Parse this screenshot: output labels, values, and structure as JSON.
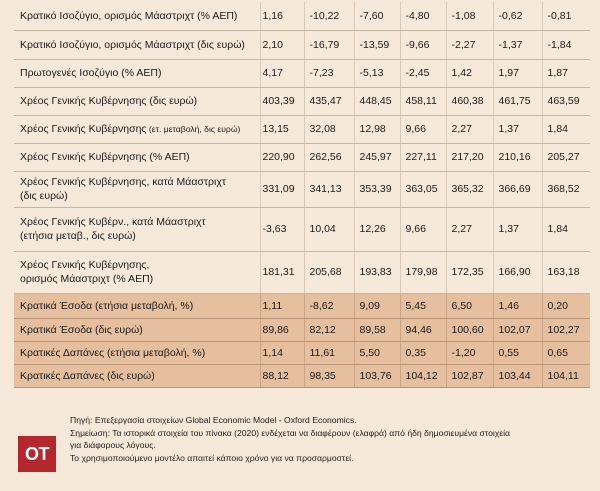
{
  "table": {
    "rows": [
      {
        "style": "light",
        "label": "Κρατικό Ισοζύγιο, ορισμός Μάαστριχτ (% ΑΕΠ)",
        "values": [
          "1,16",
          "-10,22",
          "-7,60",
          "-4,80",
          "-1,08",
          "-0,62",
          "-0,81"
        ]
      },
      {
        "style": "light",
        "label": "Κρατικό Ισοζύγιο, ορισμός Μάαστριχτ (δις ευρώ)",
        "values": [
          "2,10",
          "-16,79",
          "-13,59",
          "-9,66",
          "-2,27",
          "-1,37",
          "-1,84"
        ]
      },
      {
        "style": "light",
        "label": "Πρωτογενές Ισοζύγιο (% ΑΕΠ)",
        "values": [
          "4,17",
          "-7,23",
          "-5,13",
          "-2,45",
          "1,42",
          "1,97",
          "1,87"
        ]
      },
      {
        "style": "light",
        "label": "Χρέος Γενικής Κυβέρνησης (δις ευρώ)",
        "values": [
          "403,39",
          "435,47",
          "448,45",
          "458,11",
          "460,38",
          "461,75",
          "463,59"
        ]
      },
      {
        "style": "light",
        "label": "Χρέος Γενικής Κυβέρνησης",
        "label_small": " (ετ. μεταβολή, δις ευρώ)",
        "values": [
          "13,15",
          "32,08",
          "12,98",
          "9,66",
          "2,27",
          "1,37",
          "1,84"
        ]
      },
      {
        "style": "light",
        "label": "Χρέος Γενικής Κυβέρνησης (% ΑΕΠ)",
        "values": [
          "220,90",
          "262,56",
          "245,97",
          "227,11",
          "217,20",
          "210,16",
          "205,27"
        ]
      },
      {
        "style": "light",
        "label": "Χρέος Γενικής Κυβέρνησης, κατά Μάαστριχτ",
        "label2": "(δις ευρώ)",
        "values": [
          "331,09",
          "341,13",
          "353,39",
          "363,05",
          "365,32",
          "366,69",
          "368,52"
        ]
      },
      {
        "style": "light",
        "label": "Χρέος Γενικής Κυβέρν., κατά Μάαστριχτ",
        "label2": "(ετήσια μεταβ., δις ευρώ)",
        "values": [
          "-3,63",
          "10,04",
          "12,26",
          "9,66",
          "2,27",
          "1,37",
          "1,84"
        ]
      },
      {
        "style": "light",
        "label": "Χρέος Γενικής Κυβέρνησης,",
        "label2": "ορισμός Μάαστριχτ (% ΑΕΠ)",
        "values": [
          "181,31",
          "205,68",
          "193,83",
          "179,98",
          "172,35",
          "166,90",
          "163,18"
        ]
      },
      {
        "style": "dark",
        "label": "Κρατικά Έσοδα (ετήσια μεταβολή, %)",
        "values": [
          "1,11",
          "-8,62",
          "9,09",
          "5,45",
          "6,50",
          "1,46",
          "0,20"
        ]
      },
      {
        "style": "dark",
        "label": "Κρατικά Έσοδα (δις ευρώ)",
        "values": [
          "89,86",
          "82,12",
          "89,58",
          "94,46",
          "100,60",
          "102,07",
          "102,27"
        ]
      },
      {
        "style": "dark",
        "label": "Κρατικές Δαπάνες (ετήσια μεταβολή, %)",
        "values": [
          "1,14",
          "11,61",
          "5,50",
          "0,35",
          "-1,20",
          "0,55",
          "0,65"
        ]
      },
      {
        "style": "dark",
        "label": "Κρατικές Δαπάνες (δις ευρώ)",
        "values": [
          "88,12",
          "98,35",
          "103,76",
          "104,12",
          "102,87",
          "103,44",
          "104,11"
        ]
      }
    ]
  },
  "footer": {
    "logo_text": "ΟΤ",
    "notes": [
      "Πηγή: Επεξεργασία στοιχείων Global Economic Model - Oxford Economics.",
      "Σημείωση: Τα ιστορικά στοιχεία του πίνακα (2020) ενδέχεται να διαφέρουν (ελαφρά) από ήδη δημοσιευμένα στοιχεία",
      "για διάφορους λόγους.",
      "Το χρησιμοποιούμενο μοντέλο απαιτεί κάποιο χρόνο για να προσαρμοστεί."
    ]
  }
}
